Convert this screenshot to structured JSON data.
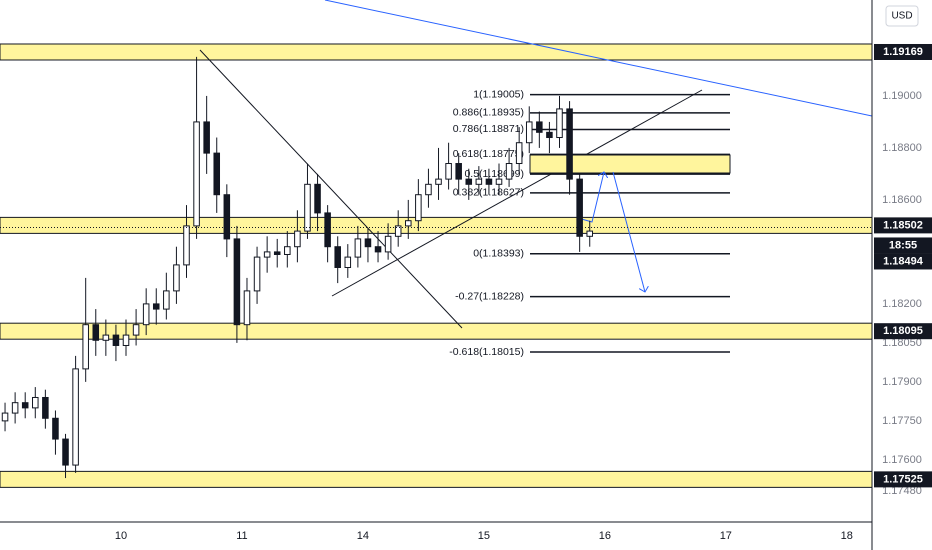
{
  "chart_data": {
    "type": "candlestick",
    "currency": "USD",
    "countdown": "18:55",
    "last_price": 1.18494,
    "up_color": "#ffffff",
    "down_color": "#131722",
    "level_color": "#fff59d",
    "xlim": [
      0,
      173
    ],
    "ylim": [
      1.17361,
      1.19369
    ],
    "xticks": [
      {
        "value": 24,
        "label": "10"
      },
      {
        "value": 48,
        "label": "11"
      },
      {
        "value": 72,
        "label": "14"
      },
      {
        "value": 96,
        "label": "15"
      },
      {
        "value": 120,
        "label": "16"
      },
      {
        "value": 144,
        "label": "17"
      },
      {
        "value": 168,
        "label": "18"
      }
    ],
    "yticks": [
      {
        "value": 1.19,
        "label": "1.19000"
      },
      {
        "value": 1.188,
        "label": "1.18800"
      },
      {
        "value": 1.186,
        "label": "1.18600"
      },
      {
        "value": 1.182,
        "label": "1.18200"
      },
      {
        "value": 1.1805,
        "label": "1.18050"
      },
      {
        "value": 1.179,
        "label": "1.17900"
      },
      {
        "value": 1.1775,
        "label": "1.17750"
      },
      {
        "value": 1.176,
        "label": "1.17600"
      },
      {
        "value": 1.1748,
        "label": "1.17480"
      }
    ],
    "levels": [
      1.19169,
      1.18502,
      1.18095,
      1.17525
    ],
    "fib": [
      {
        "label": "1(1.19005)",
        "value": 1.19005
      },
      {
        "label": "0.886(1.18935)",
        "value": 1.18935
      },
      {
        "label": "0.786(1.18871)",
        "value": 1.18871
      },
      {
        "label": "0.618(1.18775)",
        "value": 1.18775
      },
      {
        "label": "0.5(1.18699)",
        "value": 1.18699
      },
      {
        "label": "0.382(1.18627)",
        "value": 1.18627
      },
      {
        "label": "0(1.18393)",
        "value": 1.18393
      },
      {
        "label": "-0.27(1.18228)",
        "value": 1.18228
      },
      {
        "label": "-0.618(1.18015)",
        "value": 1.18015
      }
    ],
    "x": [
      1,
      3,
      5,
      7,
      9,
      11,
      13,
      15,
      17,
      19,
      21,
      23,
      25,
      27,
      29,
      31,
      33,
      35,
      37,
      39,
      41,
      43,
      45,
      47,
      49,
      51,
      53,
      55,
      57,
      59,
      61,
      63,
      65,
      67,
      69,
      71,
      73,
      75,
      77,
      79,
      81,
      83,
      85,
      87,
      89,
      91,
      93,
      95,
      97,
      99,
      101,
      103,
      105,
      107,
      109,
      111,
      113,
      115,
      117
    ],
    "open": [
      1.1775,
      1.1778,
      1.1782,
      1.178,
      1.1784,
      1.1776,
      1.1768,
      1.1758,
      1.1795,
      1.1812,
      1.1806,
      1.1808,
      1.1804,
      1.1808,
      1.1812,
      1.182,
      1.1818,
      1.1825,
      1.1835,
      1.185,
      1.189,
      1.1878,
      1.1862,
      1.1845,
      1.1812,
      1.1825,
      1.1838,
      1.184,
      1.1839,
      1.1842,
      1.1848,
      1.1866,
      1.1855,
      1.1842,
      1.1834,
      1.1838,
      1.1845,
      1.1842,
      1.184,
      1.1846,
      1.185,
      1.1852,
      1.1862,
      1.1866,
      1.1868,
      1.1874,
      1.1868,
      1.1866,
      1.1868,
      1.1866,
      1.1868,
      1.1874,
      1.1882,
      1.189,
      1.1886,
      1.1884,
      1.1895,
      1.1868,
      1.1846
    ],
    "high": [
      1.1782,
      1.1786,
      1.1786,
      1.1788,
      1.1787,
      1.1779,
      1.177,
      1.18,
      1.183,
      1.1818,
      1.1814,
      1.1812,
      1.1814,
      1.1818,
      1.1826,
      1.1826,
      1.1832,
      1.1842,
      1.1858,
      1.1915,
      1.19,
      1.1884,
      1.1866,
      1.185,
      1.183,
      1.1842,
      1.1846,
      1.1845,
      1.1848,
      1.1856,
      1.1874,
      1.187,
      1.1858,
      1.1846,
      1.1843,
      1.185,
      1.1849,
      1.1848,
      1.1851,
      1.1856,
      1.186,
      1.1868,
      1.1872,
      1.188,
      1.1882,
      1.1878,
      1.1872,
      1.1873,
      1.1872,
      1.1874,
      1.188,
      1.1888,
      1.1896,
      1.1894,
      1.189,
      1.19,
      1.1898,
      1.187,
      1.1852
    ],
    "low": [
      1.1771,
      1.1774,
      1.1776,
      1.1776,
      1.1772,
      1.1762,
      1.1753,
      1.1755,
      1.179,
      1.18,
      1.18,
      1.1798,
      1.18,
      1.1804,
      1.1808,
      1.1812,
      1.1814,
      1.182,
      1.183,
      1.1845,
      1.187,
      1.1855,
      1.1838,
      1.1805,
      1.1806,
      1.182,
      1.1832,
      1.1834,
      1.1834,
      1.1836,
      1.1845,
      1.1848,
      1.1836,
      1.1828,
      1.183,
      1.1834,
      1.1836,
      1.1836,
      1.1837,
      1.1842,
      1.1845,
      1.1848,
      1.1857,
      1.186,
      1.1864,
      1.1862,
      1.186,
      1.1862,
      1.1862,
      1.1862,
      1.1865,
      1.187,
      1.1878,
      1.188,
      1.1878,
      1.188,
      1.1862,
      1.184,
      1.1842
    ],
    "close": [
      1.1778,
      1.1782,
      1.178,
      1.1784,
      1.1776,
      1.1768,
      1.1758,
      1.1795,
      1.1812,
      1.1806,
      1.1808,
      1.1804,
      1.1808,
      1.1812,
      1.182,
      1.1818,
      1.1825,
      1.1835,
      1.185,
      1.189,
      1.1878,
      1.1862,
      1.1845,
      1.1812,
      1.1825,
      1.1838,
      1.184,
      1.1839,
      1.1842,
      1.1848,
      1.1866,
      1.1855,
      1.1842,
      1.1834,
      1.1838,
      1.1845,
      1.1842,
      1.184,
      1.1846,
      1.185,
      1.1852,
      1.1862,
      1.1866,
      1.1868,
      1.1874,
      1.1868,
      1.1866,
      1.1868,
      1.1866,
      1.1868,
      1.1874,
      1.1882,
      1.189,
      1.1886,
      1.1884,
      1.1895,
      1.1868,
      1.1846,
      1.1848
    ]
  }
}
